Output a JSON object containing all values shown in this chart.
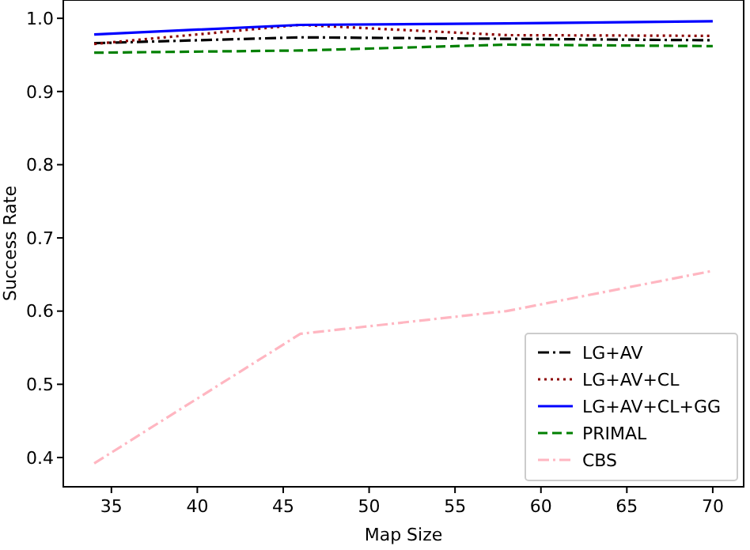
{
  "chart_data": {
    "type": "line",
    "xlabel": "Map Size",
    "ylabel": "Success Rate",
    "x": [
      34,
      46,
      58,
      70
    ],
    "xlim": [
      32.2,
      71.8
    ],
    "ylim": [
      0.36,
      1.025
    ],
    "xticks": [
      35,
      40,
      45,
      50,
      55,
      60,
      65,
      70
    ],
    "yticks": [
      0.4,
      0.5,
      0.6,
      0.7,
      0.8,
      0.9,
      {
        "value": 1,
        "label": "1.0"
      }
    ],
    "legend": "bottom right",
    "grid": false,
    "series": [
      {
        "name": "LG+AV",
        "color": "#000000",
        "line_style": "dashdot",
        "values": [
          0.966,
          0.974,
          0.972,
          0.97
        ]
      },
      {
        "name": "LG+AV+CL",
        "color": "#8b0000",
        "line_style": "dotted",
        "values": [
          0.965,
          0.991,
          0.977,
          0.976
        ]
      },
      {
        "name": "LG+AV+CL+GG",
        "color": "#0000ff",
        "line_style": "solid",
        "values": [
          0.978,
          0.991,
          0.993,
          0.996
        ]
      },
      {
        "name": "PRIMAL",
        "color": "#008000",
        "line_style": "dashed",
        "values": [
          0.953,
          0.956,
          0.964,
          0.962
        ]
      },
      {
        "name": "CBS",
        "color": "#ffb6c1",
        "line_style": "dashdot",
        "values": [
          0.392,
          0.569,
          0.6,
          0.655
        ]
      }
    ]
  }
}
